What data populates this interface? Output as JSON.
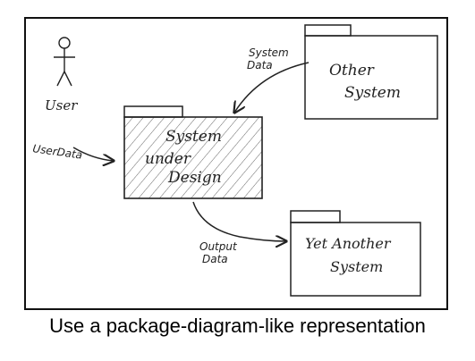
{
  "actor": {
    "label": "User"
  },
  "packages": {
    "sud": {
      "line1": "System",
      "line2": "under",
      "line3": "Design"
    },
    "other": {
      "line1": "Other",
      "line2": "System"
    },
    "yet_another": {
      "line1": "Yet Another",
      "line2": "System"
    }
  },
  "flows": {
    "user_data": "UserData",
    "system_data": {
      "line1": "System",
      "line2": "Data"
    },
    "output_data": {
      "line1": "Output",
      "line2": "Data"
    }
  },
  "caption": "Use a package-diagram-like representation",
  "colors": {
    "ink": "#222222",
    "hatch": "#555555",
    "frame": "#111111"
  }
}
